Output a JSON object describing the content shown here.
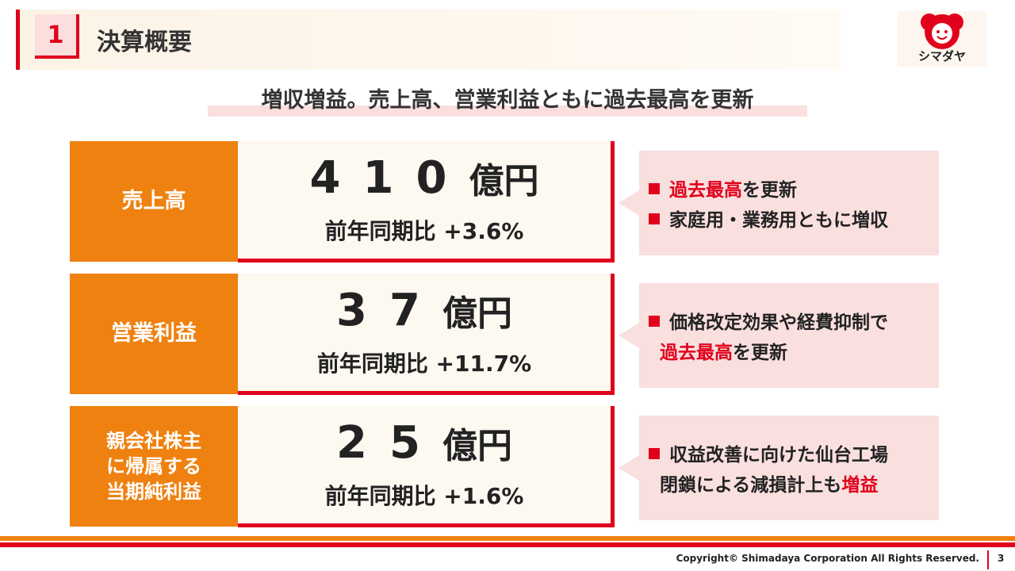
{
  "header": {
    "number": "1",
    "title": "決算概要"
  },
  "logo": {
    "text": "シマダヤ"
  },
  "headline": "増収増益。売上高、営業利益ともに過去最高を更新",
  "rows": [
    {
      "label": "売上高",
      "value": "410",
      "unit": "億円",
      "yoy": "前年同期比 +3.6%",
      "notes": [
        [
          {
            "text": "過去最高",
            "emphasis": true
          },
          {
            "text": "を更新"
          }
        ],
        [
          {
            "text": "家庭用・業務用ともに増収"
          }
        ]
      ]
    },
    {
      "label": "営業利益",
      "value": "37",
      "unit": "億円",
      "yoy": "前年同期比 +11.7%",
      "notes": [
        [
          {
            "text": "価格改定効果や経費抑制で"
          }
        ],
        [
          {
            "text": "過去最高",
            "emphasis": true
          },
          {
            "text": "を更新"
          }
        ]
      ]
    },
    {
      "label": "親会社株主\nに帰属する\n当期純利益",
      "value": "25",
      "unit": "億円",
      "yoy": "前年同期比 +1.6%",
      "notes": [
        [
          {
            "text": "収益改善に向けた仙台工場"
          }
        ],
        [
          {
            "text": "閉鎖による減損計上も"
          },
          {
            "text": "増益",
            "emphasis": true
          }
        ]
      ]
    }
  ],
  "footer": {
    "copyright": "Copyright© Shimadaya Corporation All Rights Reserved.",
    "page": "3"
  }
}
